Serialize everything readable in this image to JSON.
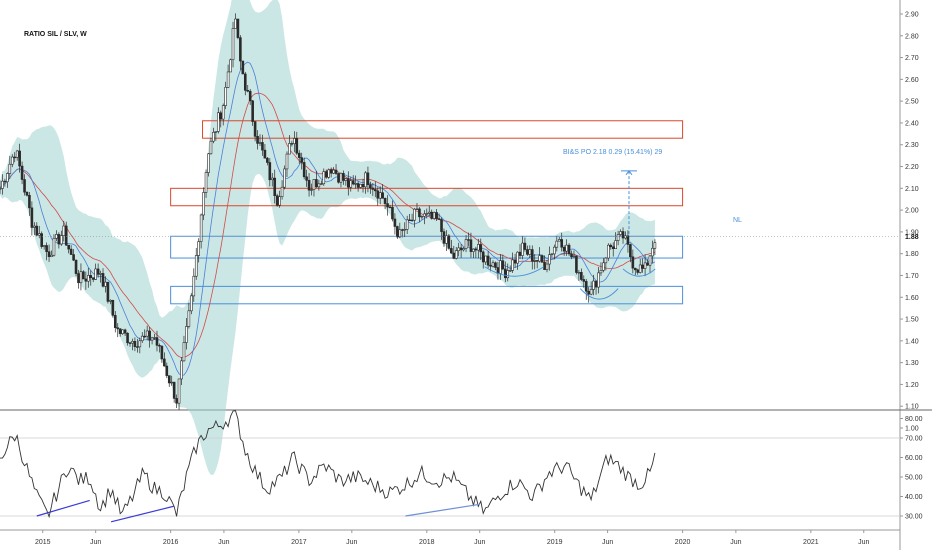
{
  "header": {
    "title": "RATIO SIL / SLV, W"
  },
  "price_axis": {
    "ticks": [
      "2.90",
      "2.80",
      "2.70",
      "2.60",
      "2.50",
      "2.40",
      "2.30",
      "2.20",
      "2.10",
      "2.00",
      "1.90",
      "1.80",
      "1.70",
      "1.60",
      "1.50",
      "1.40",
      "1.30",
      "1.20",
      "1.10",
      "1.00"
    ],
    "last_price_label": "1.88"
  },
  "rsi_axis": {
    "ticks": [
      "80.00",
      "70.00",
      "60.00",
      "50.00",
      "40.00",
      "30.00"
    ]
  },
  "time_axis": {
    "labels": [
      "2015",
      "Jun",
      "2016",
      "Jun",
      "2017",
      "Jun",
      "2018",
      "Jun",
      "2019",
      "Jun",
      "2020",
      "Jun",
      "2021",
      "Jun"
    ]
  },
  "annotations": {
    "measure_label": "BI&S PO 2.18  0.29 (15.41%) 29",
    "neckline_label": "NL"
  },
  "colors": {
    "candle": "#2a2a2a",
    "bollinger_fill": "#9fd3d0",
    "ma_fast": "#4a7fd6",
    "ma_slow": "#d24a4a",
    "resistance_box": "#d9472b",
    "support_box": "#4a90d9",
    "rsi_line": "#333333",
    "divergence_line": "#3b3bd6"
  },
  "chart_data": [
    {
      "type": "candlestick",
      "title": "RATIO SIL / SLV, W",
      "ylabel": "",
      "ylim": [
        1.0,
        2.92
      ],
      "x_range": [
        "2014-09-01",
        "2021-09-01"
      ],
      "y_scale": "linear",
      "grid": false,
      "indicators": [
        "bollinger bands",
        "moving average (blue)",
        "moving average (red)"
      ],
      "price_path": [
        [
          "2014-09-01",
          2.1
        ],
        [
          "2014-10-15",
          2.28
        ],
        [
          "2014-12-01",
          1.95
        ],
        [
          "2015-01-15",
          1.8
        ],
        [
          "2015-03-01",
          1.9
        ],
        [
          "2015-04-15",
          1.68
        ],
        [
          "2015-06-15",
          1.72
        ],
        [
          "2015-08-01",
          1.45
        ],
        [
          "2015-09-15",
          1.4
        ],
        [
          "2015-11-15",
          1.42
        ],
        [
          "2016-01-18",
          1.13
        ],
        [
          "2016-03-01",
          1.6
        ],
        [
          "2016-04-15",
          2.25
        ],
        [
          "2016-06-01",
          2.5
        ],
        [
          "2016-07-04",
          2.88
        ],
        [
          "2016-07-15",
          2.7
        ],
        [
          "2016-09-01",
          2.35
        ],
        [
          "2016-11-01",
          2.05
        ],
        [
          "2016-12-15",
          2.35
        ],
        [
          "2017-02-01",
          2.1
        ],
        [
          "2017-04-01",
          2.2
        ],
        [
          "2017-06-01",
          2.1
        ],
        [
          "2017-07-15",
          2.15
        ],
        [
          "2017-09-01",
          2.05
        ],
        [
          "2017-10-15",
          1.88
        ],
        [
          "2017-12-01",
          1.98
        ],
        [
          "2018-02-01",
          1.95
        ],
        [
          "2018-03-15",
          1.78
        ],
        [
          "2018-05-01",
          1.85
        ],
        [
          "2018-06-15",
          1.78
        ],
        [
          "2018-08-15",
          1.72
        ],
        [
          "2018-10-01",
          1.82
        ],
        [
          "2018-12-01",
          1.75
        ],
        [
          "2019-01-15",
          1.88
        ],
        [
          "2019-03-01",
          1.75
        ],
        [
          "2019-04-15",
          1.62
        ],
        [
          "2019-06-01",
          1.82
        ],
        [
          "2019-07-15",
          1.88
        ],
        [
          "2019-08-15",
          1.75
        ],
        [
          "2019-09-15",
          1.72
        ],
        [
          "2019-10-15",
          1.88
        ]
      ],
      "zones": [
        {
          "kind": "resistance",
          "x_from": "2016-04-01",
          "x_to": "2020-01-01",
          "y_from": 2.33,
          "y_to": 2.41
        },
        {
          "kind": "resistance",
          "x_from": "2016-01-01",
          "x_to": "2020-01-01",
          "y_from": 2.02,
          "y_to": 2.1
        },
        {
          "kind": "support",
          "x_from": "2016-01-01",
          "x_to": "2020-01-01",
          "y_from": 1.78,
          "y_to": 1.88
        },
        {
          "kind": "support",
          "x_from": "2016-01-01",
          "x_to": "2020-01-01",
          "y_from": 1.57,
          "y_to": 1.65
        }
      ],
      "pattern_arcs": [
        {
          "x_from": "2018-06-15",
          "x_to": "2018-12-01",
          "y_top": 1.74,
          "y_bottom": 1.69
        },
        {
          "x_from": "2019-03-15",
          "x_to": "2019-07-01",
          "y_top": 1.64,
          "y_bottom": 1.58
        },
        {
          "x_from": "2019-07-15",
          "x_to": "2019-10-15",
          "y_top": 1.73,
          "y_bottom": 1.7
        }
      ],
      "target_arrow": {
        "x": "2019-08-01",
        "y_from": 1.89,
        "y_to": 2.18
      },
      "last_price": 1.88
    },
    {
      "type": "line",
      "title": "",
      "ylim": [
        24,
        84
      ],
      "ref_lines": [
        70,
        30
      ],
      "grid": false,
      "series": [
        {
          "values_path": [
            [
              "2014-09-01",
              60
            ],
            [
              "2014-10-15",
              72
            ],
            [
              "2014-11-15",
              55
            ],
            [
              "2014-12-15",
              40
            ],
            [
              "2015-01-15",
              30
            ],
            [
              "2015-02-15",
              44
            ],
            [
              "2015-03-15",
              56
            ],
            [
              "2015-04-15",
              48
            ],
            [
              "2015-05-15",
              50
            ],
            [
              "2015-06-15",
              34
            ],
            [
              "2015-07-15",
              44
            ],
            [
              "2015-08-15",
              30
            ],
            [
              "2015-09-15",
              40
            ],
            [
              "2015-10-15",
              52
            ],
            [
              "2015-11-15",
              44
            ],
            [
              "2015-12-15",
              42
            ],
            [
              "2016-01-18",
              31
            ],
            [
              "2016-02-15",
              50
            ],
            [
              "2016-03-15",
              66
            ],
            [
              "2016-04-15",
              74
            ],
            [
              "2016-05-15",
              76
            ],
            [
              "2016-06-15",
              80
            ],
            [
              "2016-07-04",
              82
            ],
            [
              "2016-08-01",
              64
            ],
            [
              "2016-09-01",
              52
            ],
            [
              "2016-10-01",
              44
            ],
            [
              "2016-11-15",
              50
            ],
            [
              "2016-12-15",
              60
            ],
            [
              "2017-02-01",
              48
            ],
            [
              "2017-03-15",
              56
            ],
            [
              "2017-05-01",
              48
            ],
            [
              "2017-06-15",
              50
            ],
            [
              "2017-08-01",
              46
            ],
            [
              "2017-09-15",
              42
            ],
            [
              "2017-11-01",
              46
            ],
            [
              "2017-12-15",
              52
            ],
            [
              "2018-02-01",
              48
            ],
            [
              "2018-03-15",
              50
            ],
            [
              "2018-05-01",
              40
            ],
            [
              "2018-06-15",
              32
            ],
            [
              "2018-08-01",
              42
            ],
            [
              "2018-09-15",
              48
            ],
            [
              "2018-11-01",
              40
            ],
            [
              "2018-12-15",
              52
            ],
            [
              "2019-02-01",
              56
            ],
            [
              "2019-03-01",
              48
            ],
            [
              "2019-04-15",
              38
            ],
            [
              "2019-06-01",
              60
            ],
            [
              "2019-07-01",
              56
            ],
            [
              "2019-08-01",
              50
            ],
            [
              "2019-09-01",
              46
            ],
            [
              "2019-10-01",
              52
            ],
            [
              "2019-10-15",
              61
            ]
          ]
        }
      ],
      "divergence_lines": [
        {
          "x_from": "2014-12-15",
          "y_from": 30,
          "x_to": "2015-05-15",
          "y_to": 38
        },
        {
          "x_from": "2015-07-15",
          "y_from": 27,
          "x_to": "2016-01-10",
          "y_to": 35
        },
        {
          "x_from": "2017-11-01",
          "y_from": 30,
          "x_to": "2018-06-01",
          "y_to": 36
        }
      ]
    }
  ]
}
